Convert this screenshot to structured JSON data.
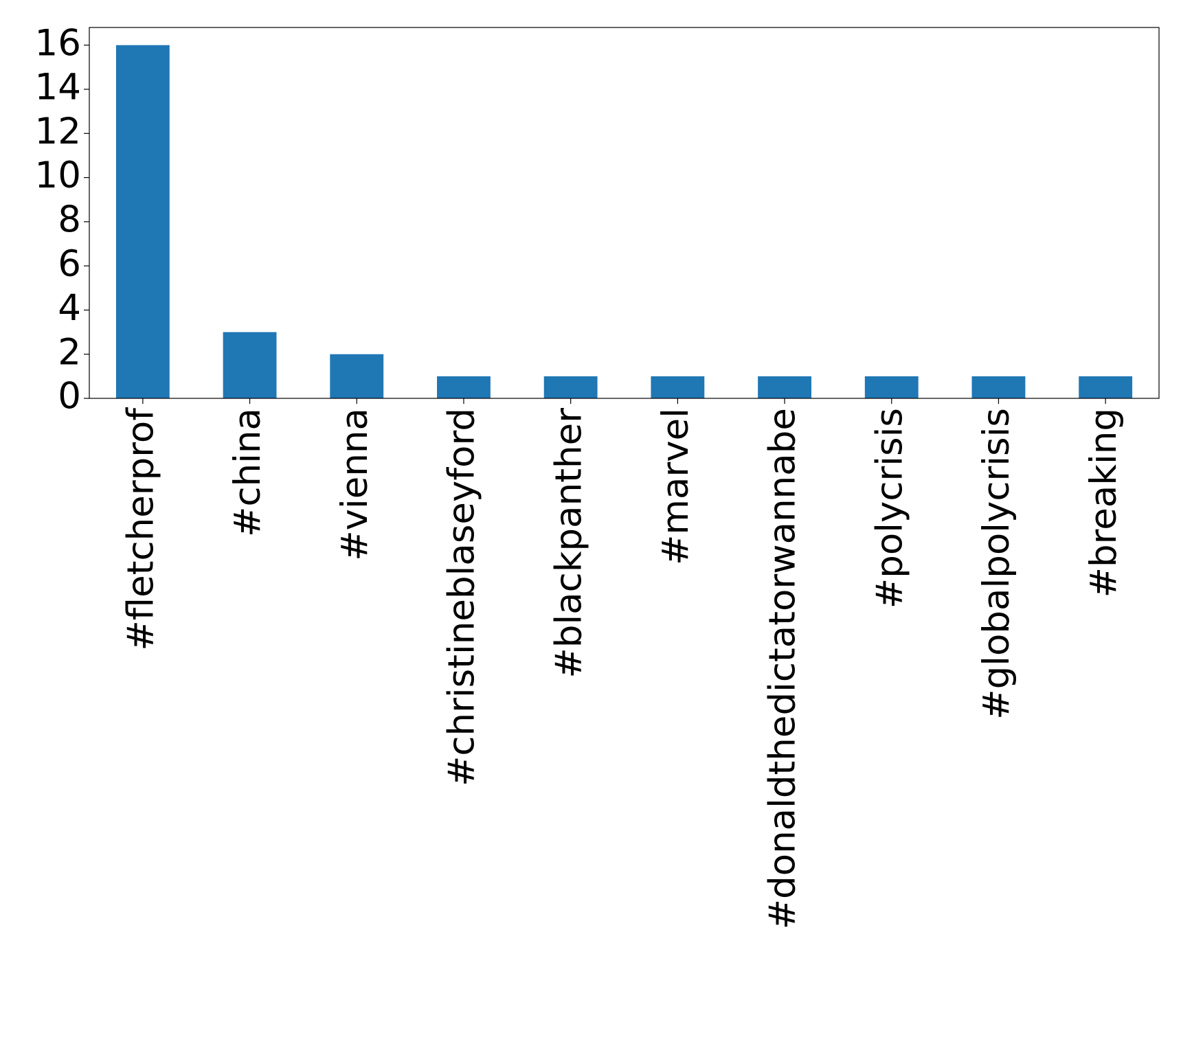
{
  "chart_data": {
    "type": "bar",
    "categories": [
      "#fletcherprof",
      "#china",
      "#vienna",
      "#christineblaseyford",
      "#blackpanther",
      "#marvel",
      "#donaldthedictatorwannabe",
      "#polycrisis",
      "#globalpolycrisis",
      "#breaking"
    ],
    "values": [
      16,
      3,
      2,
      1,
      1,
      1,
      1,
      1,
      1,
      1
    ],
    "color": "#1f77b4",
    "ylim": [
      0,
      16.8
    ],
    "yticks": [
      0,
      2,
      4,
      6,
      8,
      10,
      12,
      14,
      16
    ],
    "grid": false
  }
}
